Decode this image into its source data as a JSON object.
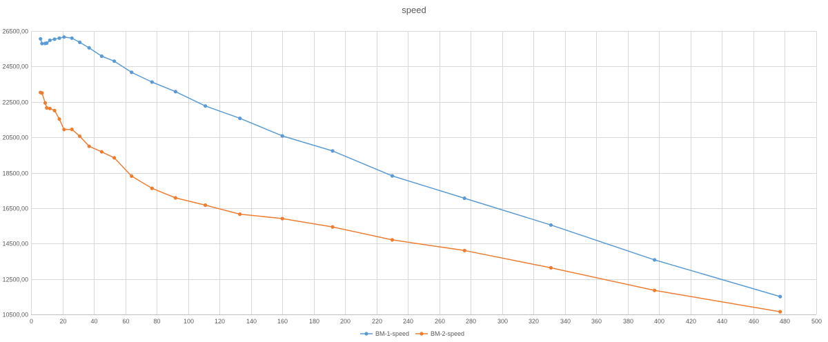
{
  "chart_data": {
    "type": "line",
    "title": "speed",
    "xlabel": "",
    "ylabel": "",
    "xlim": [
      0,
      500
    ],
    "ylim": [
      10500,
      26500
    ],
    "x_ticks": [
      0,
      20,
      40,
      60,
      80,
      100,
      120,
      140,
      160,
      180,
      200,
      220,
      240,
      260,
      280,
      300,
      320,
      340,
      360,
      380,
      400,
      420,
      440,
      460,
      480,
      500
    ],
    "x_tick_labels": [
      "0",
      "20",
      "40",
      "60",
      "80",
      "100",
      "120",
      "140",
      "160",
      "180",
      "200",
      "220",
      "240",
      "260",
      "280",
      "300",
      "320",
      "340",
      "360",
      "380",
      "400",
      "420",
      "440",
      "460",
      "480",
      "500"
    ],
    "y_ticks": [
      10500,
      12500,
      14500,
      16500,
      18500,
      20500,
      22500,
      24500,
      26500
    ],
    "y_tick_labels": [
      "10500,00",
      "12500,00",
      "14500,00",
      "16500,00",
      "18500,00",
      "20500,00",
      "22500,00",
      "24500,00",
      "26500,00"
    ],
    "grid": true,
    "legend_position": "bottom",
    "series": [
      {
        "name": "BM-1-speed",
        "color": "#5B9BD5",
        "x": [
          6,
          7,
          9,
          10,
          12,
          15,
          18,
          21,
          26,
          31,
          37,
          45,
          53,
          64,
          77,
          92,
          111,
          133,
          160,
          192,
          230,
          276,
          331,
          397,
          477
        ],
        "y": [
          26060,
          25790,
          25800,
          25820,
          25980,
          26040,
          26100,
          26160,
          26100,
          25860,
          25550,
          25080,
          24800,
          24170,
          23620,
          23080,
          22270,
          21570,
          20580,
          19730,
          18320,
          17060,
          15550,
          13580,
          11510
        ]
      },
      {
        "name": "BM-2-speed",
        "color": "#ED7D31",
        "x": [
          6,
          7,
          9,
          10,
          12,
          15,
          18,
          21,
          26,
          31,
          37,
          45,
          53,
          64,
          77,
          92,
          111,
          133,
          160,
          192,
          230,
          276,
          331,
          397,
          477
        ],
        "y": [
          23030,
          23000,
          22440,
          22160,
          22130,
          22010,
          21530,
          20940,
          20950,
          20560,
          19990,
          19680,
          19340,
          18310,
          17620,
          17080,
          16670,
          16160,
          15910,
          15440,
          14710,
          14110,
          13130,
          11860,
          10650
        ]
      }
    ]
  }
}
